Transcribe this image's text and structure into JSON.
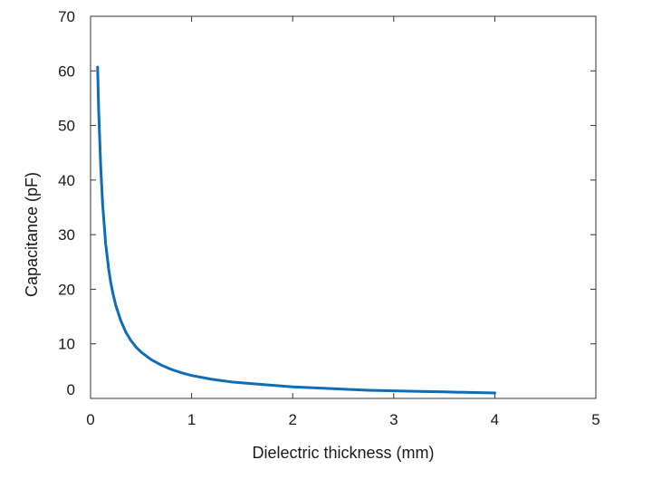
{
  "chart_data": {
    "type": "line",
    "title": "",
    "xlabel": "Dielectric thickness (mm)",
    "ylabel": "Capacitance (pF)",
    "xlim": [
      0,
      5
    ],
    "ylim": [
      0,
      70
    ],
    "x_ticks": [
      "0",
      "1",
      "2",
      "3",
      "4",
      "5"
    ],
    "y_ticks": [
      "0",
      "10",
      "20",
      "30",
      "40",
      "50",
      "60",
      "70"
    ],
    "grid": false,
    "legend": "none",
    "series": [
      {
        "color": "#0f6cb6",
        "x": [
          0.07,
          0.08,
          0.1,
          0.12,
          0.15,
          0.18,
          0.2,
          0.22,
          0.25,
          0.3,
          0.35,
          0.4,
          0.45,
          0.5,
          0.6,
          0.7,
          0.8,
          0.9,
          1.0,
          1.2,
          1.4,
          1.6,
          1.8,
          2.0,
          2.25,
          2.5,
          2.75,
          3.0,
          3.25,
          3.5,
          3.75,
          4.0
        ],
        "y": [
          60.7,
          53.1,
          42.5,
          35.4,
          28.3,
          23.6,
          21.2,
          19.3,
          17.0,
          14.2,
          12.1,
          10.6,
          9.4,
          8.5,
          7.1,
          6.1,
          5.3,
          4.7,
          4.2,
          3.5,
          3.0,
          2.7,
          2.4,
          2.1,
          1.9,
          1.7,
          1.5,
          1.4,
          1.3,
          1.2,
          1.1,
          1.0
        ]
      }
    ]
  }
}
